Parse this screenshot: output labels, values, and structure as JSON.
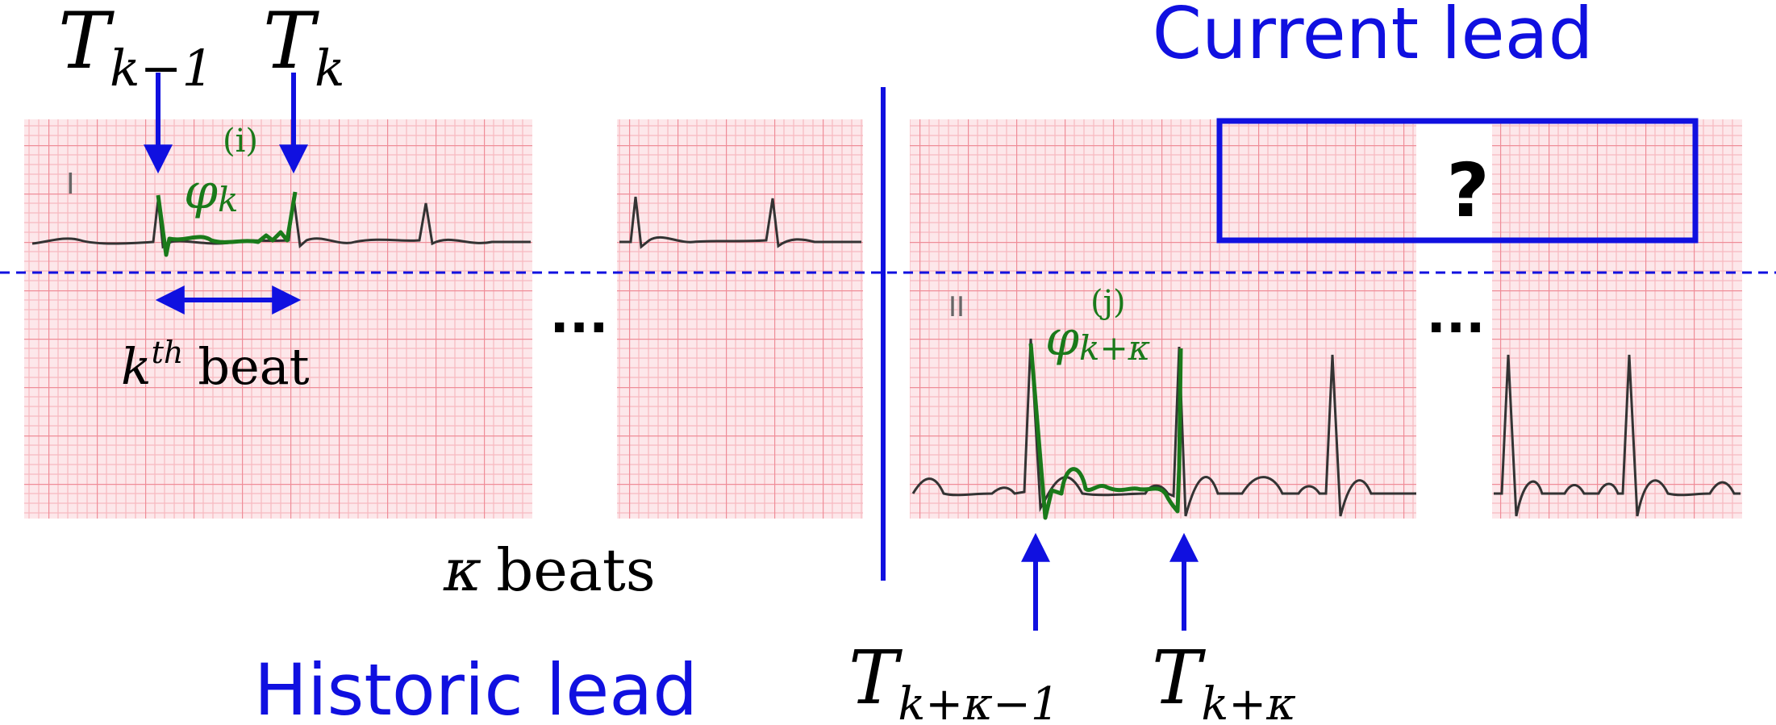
{
  "labels": {
    "current_lead": "Current lead",
    "historic_lead": "Historic lead",
    "question_mark": "?",
    "ellipsis_left": "...",
    "ellipsis_right": "...",
    "lead_one": "I",
    "lead_two": "II",
    "beat_label": "beat",
    "beat_superscript": "th",
    "beat_k": "k",
    "kappa_beats": "beats",
    "kappa": "κ"
  },
  "math": {
    "T_k_minus_1": {
      "base": "T",
      "sub": "k−1"
    },
    "T_k": {
      "base": "T",
      "sub": "k"
    },
    "phi_k": {
      "base": "φ",
      "sup": "(i)",
      "sub": "k"
    },
    "phi_k_kappa": {
      "base": "φ",
      "sup": "(j)",
      "sub": "k+κ"
    },
    "T_k_kappa_minus_1": {
      "base": "T",
      "sub": "k+κ−1"
    },
    "T_k_kappa": {
      "base": "T",
      "sub": "k+κ"
    }
  },
  "colors": {
    "blue": "#1010e0",
    "green": "#1a7a1a",
    "grid_bg": "#fde7ea",
    "grid_minor": "#f7b9c0",
    "grid_major": "#ef8d98",
    "trace": "#333333"
  },
  "icons": {
    "arrows": "arrow-icon"
  }
}
